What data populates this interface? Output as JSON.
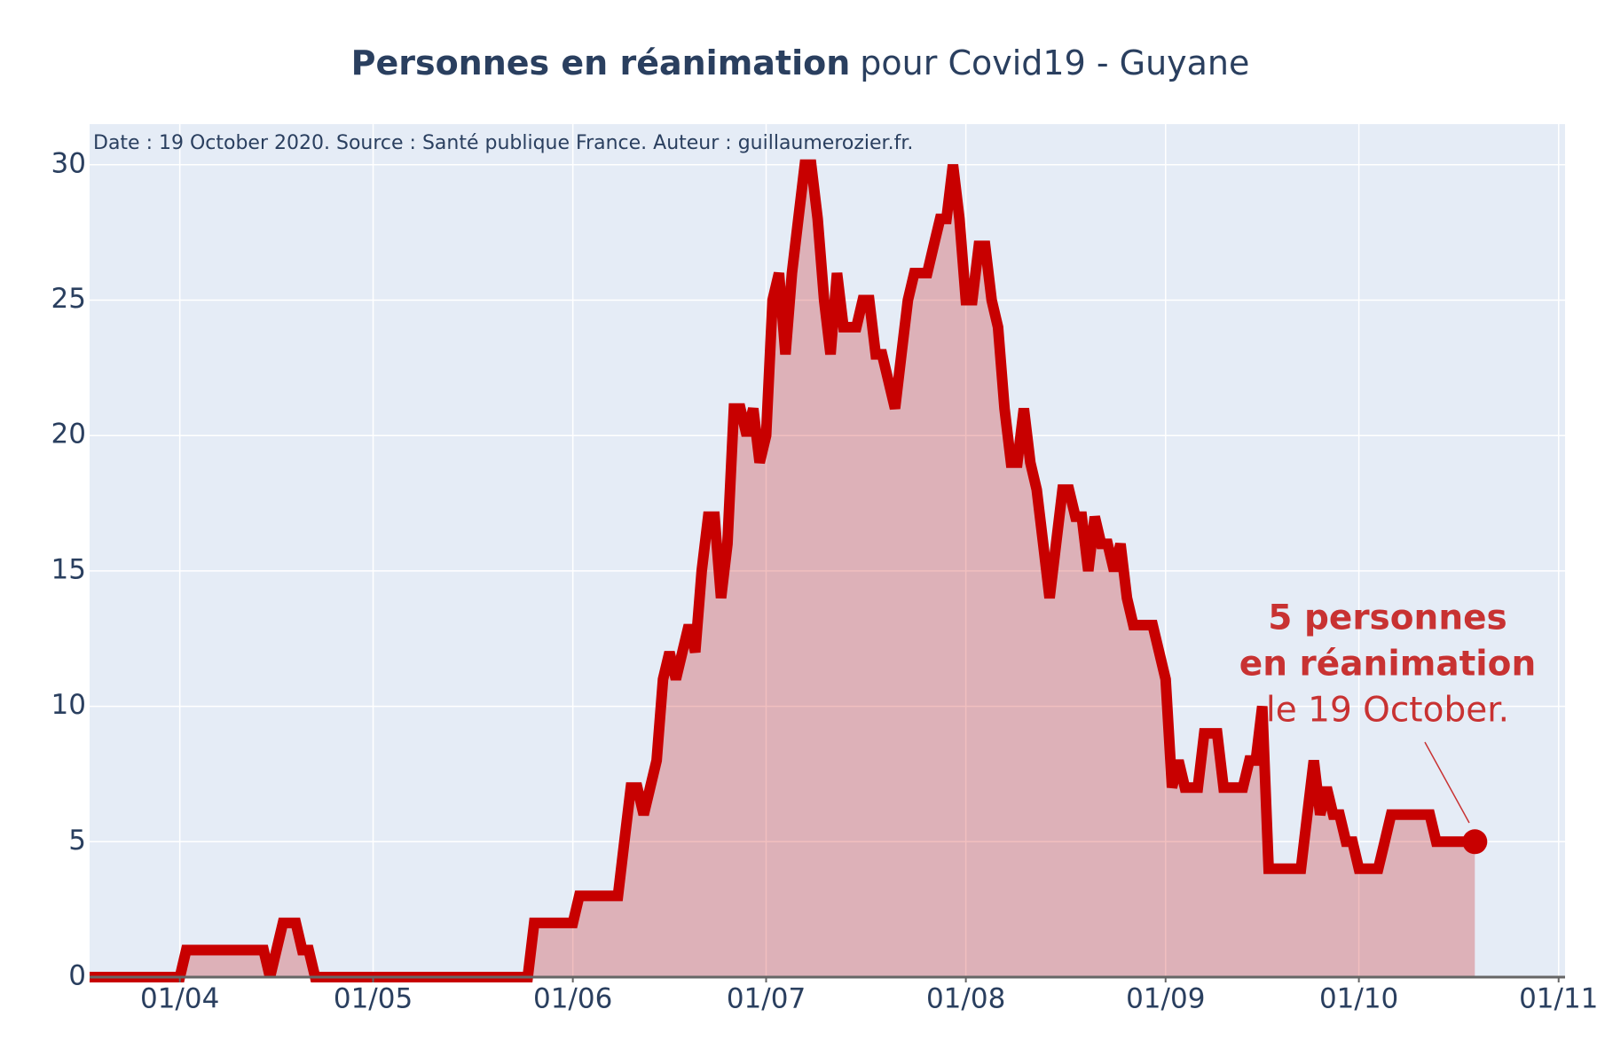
{
  "chart_data": {
    "type": "area",
    "title": [
      "Personnes en réanimation",
      "pour Covid19 - Guyane"
    ],
    "subtitle": "Date : 19 October 2020. Source : Santé publique France. Auteur : guillaumerozier.fr.",
    "annotation": [
      "5 personnes",
      "en réanimation",
      "le 19 October."
    ],
    "x": [
      "18/03",
      "19/03",
      "20/03",
      "21/03",
      "22/03",
      "23/03",
      "24/03",
      "25/03",
      "26/03",
      "27/03",
      "28/03",
      "29/03",
      "30/03",
      "31/03",
      "01/04",
      "02/04",
      "03/04",
      "04/04",
      "05/04",
      "06/04",
      "07/04",
      "08/04",
      "09/04",
      "10/04",
      "11/04",
      "12/04",
      "13/04",
      "14/04",
      "15/04",
      "16/04",
      "17/04",
      "18/04",
      "19/04",
      "20/04",
      "21/04",
      "22/04",
      "23/04",
      "24/04",
      "25/04",
      "26/04",
      "27/04",
      "28/04",
      "29/04",
      "30/04",
      "01/05",
      "02/05",
      "03/05",
      "04/05",
      "05/05",
      "06/05",
      "07/05",
      "08/05",
      "09/05",
      "10/05",
      "11/05",
      "12/05",
      "13/05",
      "14/05",
      "15/05",
      "16/05",
      "17/05",
      "18/05",
      "19/05",
      "20/05",
      "21/05",
      "22/05",
      "23/05",
      "24/05",
      "25/05",
      "26/05",
      "27/05",
      "28/05",
      "29/05",
      "30/05",
      "31/05",
      "01/06",
      "02/06",
      "03/06",
      "04/06",
      "05/06",
      "06/06",
      "07/06",
      "08/06",
      "09/06",
      "10/06",
      "11/06",
      "12/06",
      "13/06",
      "14/06",
      "15/06",
      "16/06",
      "17/06",
      "18/06",
      "19/06",
      "20/06",
      "21/06",
      "22/06",
      "23/06",
      "24/06",
      "25/06",
      "26/06",
      "27/06",
      "28/06",
      "29/06",
      "30/06",
      "01/07",
      "02/07",
      "03/07",
      "04/07",
      "05/07",
      "06/07",
      "07/07",
      "08/07",
      "09/07",
      "10/07",
      "11/07",
      "12/07",
      "13/07",
      "14/07",
      "15/07",
      "16/07",
      "17/07",
      "18/07",
      "19/07",
      "20/07",
      "21/07",
      "22/07",
      "23/07",
      "24/07",
      "25/07",
      "26/07",
      "27/07",
      "28/07",
      "29/07",
      "30/07",
      "31/07",
      "01/08",
      "02/08",
      "03/08",
      "04/08",
      "05/08",
      "06/08",
      "07/08",
      "08/08",
      "09/08",
      "10/08",
      "11/08",
      "12/08",
      "13/08",
      "14/08",
      "15/08",
      "16/08",
      "17/08",
      "18/08",
      "19/08",
      "20/08",
      "21/08",
      "22/08",
      "23/08",
      "24/08",
      "25/08",
      "26/08",
      "27/08",
      "28/08",
      "29/08",
      "30/08",
      "31/08",
      "01/09",
      "02/09",
      "03/09",
      "04/09",
      "05/09",
      "06/09",
      "07/09",
      "08/09",
      "09/09",
      "10/09",
      "11/09",
      "12/09",
      "13/09",
      "14/09",
      "15/09",
      "16/09",
      "17/09",
      "18/09",
      "19/09",
      "20/09",
      "21/09",
      "22/09",
      "23/09",
      "24/09",
      "25/09",
      "26/09",
      "27/09",
      "28/09",
      "29/09",
      "30/09",
      "01/10",
      "02/10",
      "03/10",
      "04/10",
      "05/10",
      "06/10",
      "07/10",
      "08/10",
      "09/10",
      "10/10",
      "11/10",
      "12/10",
      "13/10",
      "14/10",
      "15/10",
      "16/10",
      "17/10",
      "18/10",
      "19/10"
    ],
    "values": [
      0,
      0,
      0,
      0,
      0,
      0,
      0,
      0,
      0,
      0,
      0,
      0,
      0,
      0,
      0,
      1,
      1,
      1,
      1,
      1,
      1,
      1,
      1,
      1,
      1,
      1,
      1,
      1,
      0,
      1,
      2,
      2,
      2,
      1,
      1,
      0,
      0,
      0,
      0,
      0,
      0,
      0,
      0,
      0,
      0,
      0,
      0,
      0,
      0,
      0,
      0,
      0,
      0,
      0,
      0,
      0,
      0,
      0,
      0,
      0,
      0,
      0,
      0,
      0,
      0,
      0,
      0,
      0,
      0,
      2,
      2,
      2,
      2,
      2,
      2,
      2,
      3,
      3,
      3,
      3,
      3,
      3,
      3,
      5,
      7,
      7,
      6,
      7,
      8,
      11,
      12,
      11,
      12,
      13,
      12,
      15,
      17,
      17,
      14,
      16,
      21,
      21,
      20,
      21,
      19,
      20,
      25,
      26,
      23,
      26,
      28,
      30,
      30,
      28,
      25,
      23,
      26,
      24,
      24,
      24,
      25,
      25,
      23,
      23,
      22,
      21,
      23,
      25,
      26,
      26,
      26,
      27,
      28,
      28,
      30,
      28,
      25,
      25,
      27,
      27,
      25,
      24,
      21,
      19,
      19,
      21,
      19,
      18,
      16,
      14,
      16,
      18,
      18,
      17,
      17,
      15,
      17,
      16,
      16,
      15,
      16,
      14,
      13,
      13,
      13,
      13,
      12,
      11,
      7,
      8,
      7,
      7,
      7,
      9,
      9,
      9,
      7,
      7,
      7,
      7,
      8,
      8,
      10,
      4,
      4,
      4,
      4,
      4,
      4,
      6,
      8,
      6,
      7,
      6,
      6,
      5,
      5,
      4,
      4,
      4,
      4,
      5,
      6,
      6,
      6,
      6,
      6,
      6,
      6,
      5,
      5,
      5,
      5,
      5,
      5,
      5
    ],
    "color": "#c80000",
    "xlim": [
      "18/03",
      "02/11"
    ],
    "xticks": [
      "01/04",
      "01/05",
      "01/06",
      "01/07",
      "01/08",
      "01/09",
      "01/10",
      "01/11"
    ],
    "ylim": [
      0,
      31.5
    ],
    "yticks": [
      0,
      5,
      10,
      15,
      20,
      25,
      30
    ],
    "grid": true
  }
}
